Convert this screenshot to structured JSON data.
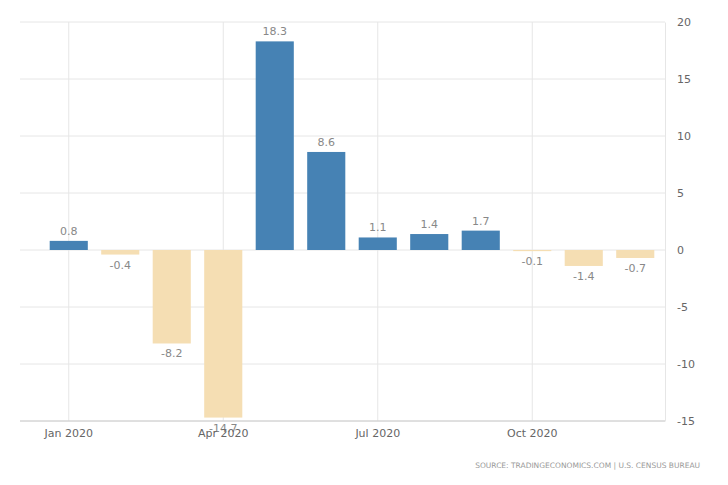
{
  "chart_data": {
    "type": "bar",
    "source": "SOURCE: TRADINGECONOMICS.COM | U.S. CENSUS BUREAU",
    "categories": [
      "Jan 2020",
      null,
      null,
      "Apr 2020",
      null,
      null,
      "Jul 2020",
      null,
      null,
      "Oct 2020",
      null,
      null
    ],
    "values": [
      0.8,
      -0.4,
      -8.2,
      -14.7,
      18.3,
      8.6,
      1.1,
      1.4,
      1.7,
      -0.1,
      -1.4,
      -0.7
    ],
    "colors": [
      "#4682b4",
      "#f5deb3",
      "#f5deb3",
      "#f5deb3",
      "#4682b4",
      "#4682b4",
      "#4682b4",
      "#4682b4",
      "#4682b4",
      "#f5deb3",
      "#f5deb3",
      "#f5deb3"
    ],
    "ylim": [
      -15,
      20
    ],
    "yticks": [
      -15,
      -10,
      -5,
      0,
      5,
      10,
      15,
      20
    ],
    "grid": true,
    "data_labels": true
  }
}
